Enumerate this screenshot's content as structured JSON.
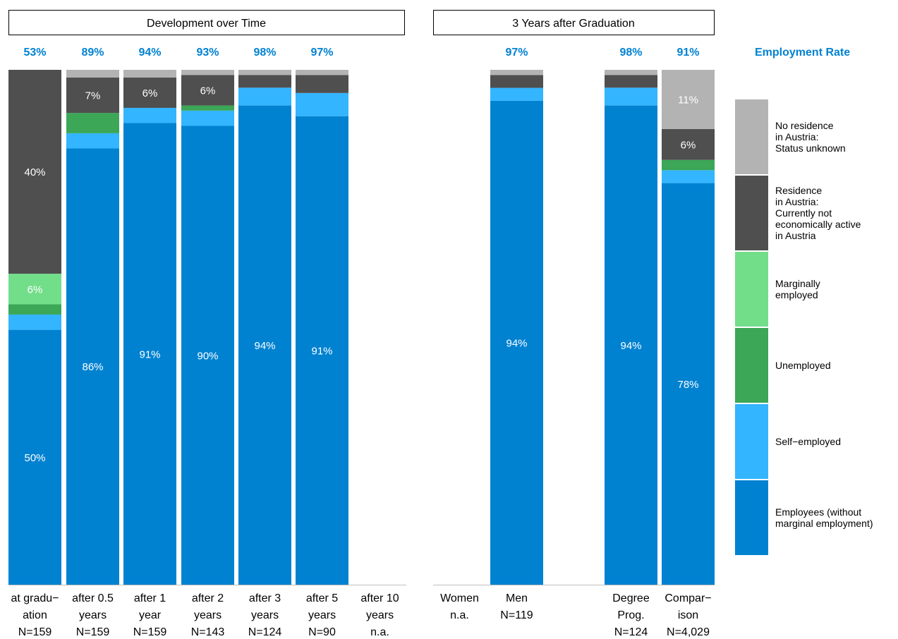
{
  "chart_data": {
    "type": "bar",
    "stacked": true,
    "panels": [
      {
        "title": "Development over Time",
        "categories": [
          0,
          1,
          2,
          3,
          4,
          5,
          6
        ]
      },
      {
        "title": "3 Years after Graduation",
        "categories": [
          7,
          8,
          9,
          10
        ]
      }
    ],
    "rate_header": "Employment Rate",
    "categories": [
      {
        "label": [
          "at gradu−",
          "ation",
          "N=159"
        ],
        "rate": "53%",
        "values": [
          50,
          3,
          2,
          6,
          40,
          0
        ],
        "labels": [
          "50%",
          "",
          "",
          "6%",
          "40%",
          ""
        ]
      },
      {
        "label": [
          "after 0.5",
          "years",
          "N=159"
        ],
        "rate": "89%",
        "values": [
          86,
          3,
          4,
          0,
          7,
          1.5
        ],
        "labels": [
          "86%",
          "",
          "",
          "",
          "7%",
          ""
        ]
      },
      {
        "label": [
          "after 1",
          "year",
          "N=159"
        ],
        "rate": "94%",
        "values": [
          91,
          3,
          0,
          0,
          6,
          1.5
        ],
        "labels": [
          "91%",
          "",
          "",
          "",
          "6%",
          ""
        ]
      },
      {
        "label": [
          "after 2",
          "years",
          "N=143"
        ],
        "rate": "93%",
        "values": [
          90,
          3,
          1,
          0,
          6,
          1
        ],
        "labels": [
          "90%",
          "",
          "",
          "",
          "6%",
          ""
        ]
      },
      {
        "label": [
          "after 3",
          "years",
          "N=124"
        ],
        "rate": "98%",
        "values": [
          94,
          3.5,
          0,
          0,
          2.5,
          1
        ],
        "labels": [
          "94%",
          "",
          "",
          "",
          "",
          ""
        ]
      },
      {
        "label": [
          "after 5",
          "years",
          "N=90"
        ],
        "rate": "97%",
        "values": [
          91,
          4.5,
          0,
          0,
          3.5,
          1
        ],
        "labels": [
          "91%",
          "",
          "",
          "",
          "",
          ""
        ]
      },
      {
        "label": [
          "after 10",
          "years",
          "n.a."
        ],
        "rate": "",
        "values": null,
        "labels": []
      },
      {
        "label": [
          "Women",
          "n.a.",
          ""
        ],
        "rate": "",
        "values": null,
        "labels": []
      },
      {
        "label": [
          "Men",
          "N=119",
          ""
        ],
        "rate": "97%",
        "values": [
          94,
          2.5,
          0,
          0,
          2.5,
          1
        ],
        "labels": [
          "94%",
          "",
          "",
          "",
          "",
          ""
        ]
      },
      {
        "label": [
          "Degree",
          "Prog.",
          "N=124"
        ],
        "rate": "98%",
        "values": [
          94,
          3.5,
          0,
          0,
          2.5,
          1
        ],
        "labels": [
          "94%",
          "",
          "",
          "",
          "",
          ""
        ]
      },
      {
        "label": [
          "Compar−",
          "ison",
          "N=4,029"
        ],
        "rate": "91%",
        "values": [
          78,
          2.5,
          2,
          0,
          6,
          11.5
        ],
        "labels": [
          "78%",
          "",
          "",
          "",
          "6%",
          "11%"
        ]
      }
    ],
    "series": [
      {
        "name": "Employees (without marginal employment)",
        "lines": [
          "Employees (without",
          "marginal employment)"
        ],
        "color": "#0082D1",
        "textColor": "#ffffff"
      },
      {
        "name": "Self−employed",
        "lines": [
          "Self−employed"
        ],
        "color": "#33B5FF",
        "textColor": "#ffffff"
      },
      {
        "name": "Unemployed",
        "lines": [
          "Unemployed"
        ],
        "color": "#3BA757",
        "textColor": "#ffffff"
      },
      {
        "name": "Marginally employed",
        "lines": [
          "Marginally",
          "employed"
        ],
        "color": "#72DE8A",
        "textColor": "#ffffff"
      },
      {
        "name": "Residence in Austria: Currently not economically active in Austria",
        "lines": [
          "Residence",
          "in Austria:",
          "Currently not",
          "economically active",
          "in Austria"
        ],
        "color": "#4F4F4F",
        "textColor": "#ffffff"
      },
      {
        "name": "No residence in Austria: Status unknown",
        "lines": [
          "No residence",
          "in Austria:",
          "Status unknown"
        ],
        "color": "#B3B3B3",
        "textColor": "#ffffff"
      }
    ],
    "ylim": [
      0,
      100
    ],
    "legend_position": "right",
    "colors": {
      "rate_text": "#0082D1",
      "axis": "#bfbfbf",
      "panel_border": "#000000"
    }
  }
}
